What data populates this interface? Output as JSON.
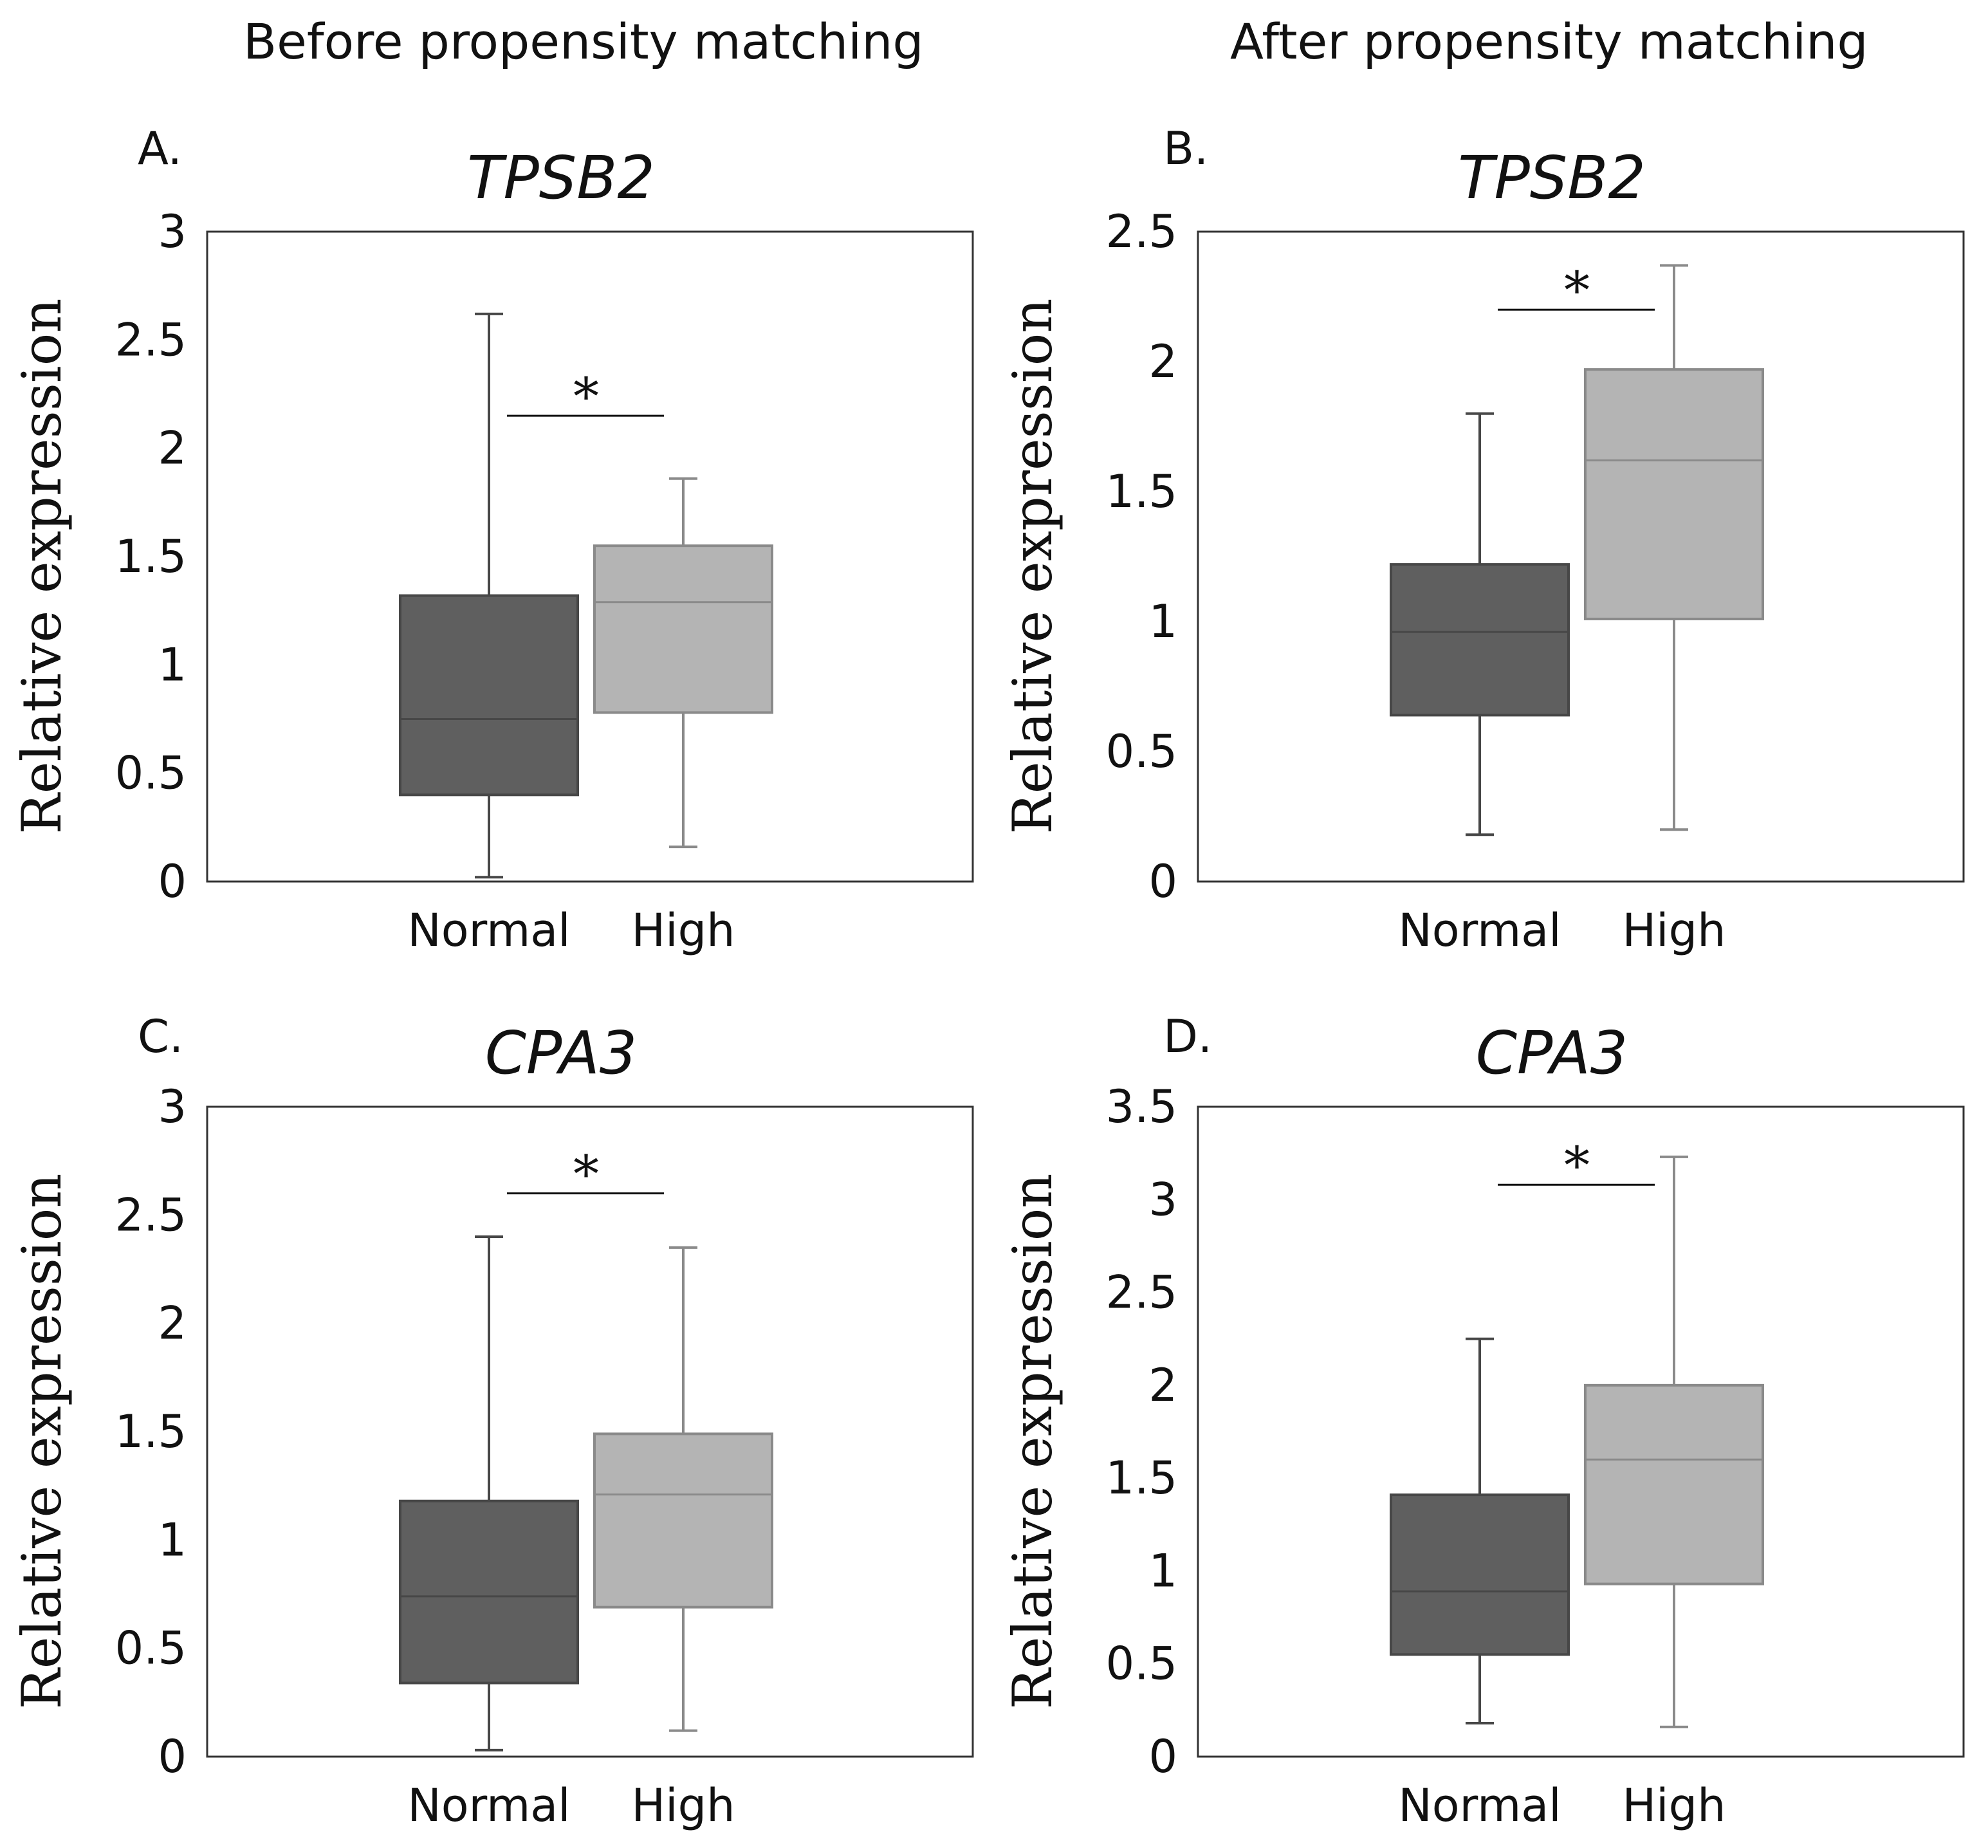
{
  "figure": {
    "columns": [
      {
        "heading": "Before propensity matching"
      },
      {
        "heading": "After propensity matching"
      }
    ]
  },
  "colors": {
    "normal_fill": "#5f5f5f",
    "normal_line": "#474747",
    "high_fill": "#b4b4b4",
    "high_line": "#8a8a8a",
    "frame": "#333333"
  },
  "chart_data": [
    {
      "panel": "A.",
      "type": "box",
      "title": "TPSB2",
      "ylabel": "Relative expression",
      "ylim": [
        0,
        3
      ],
      "yticks": [
        0,
        0.5,
        1,
        1.5,
        2,
        2.5,
        3
      ],
      "yticklabels": [
        "0",
        "0.5",
        "1",
        "1.5",
        "2",
        "2.5",
        "3"
      ],
      "categories": [
        "Normal",
        "High"
      ],
      "boxes": [
        {
          "category": "Normal",
          "min": 0.02,
          "q1": 0.4,
          "median": 0.75,
          "q3": 1.32,
          "max": 2.62
        },
        {
          "category": "High",
          "min": 0.16,
          "q1": 0.78,
          "median": 1.29,
          "q3": 1.55,
          "max": 1.86
        }
      ],
      "significance": {
        "label": "*",
        "y": 2.15
      }
    },
    {
      "panel": "B.",
      "type": "box",
      "title": "TPSB2",
      "ylabel": "Relative expression",
      "ylim": [
        0,
        2.5
      ],
      "yticks": [
        0,
        0.5,
        1,
        1.5,
        2,
        2.5
      ],
      "yticklabels": [
        "0",
        "0.5",
        "1",
        "1.5",
        "2",
        "2.5"
      ],
      "categories": [
        "Normal",
        "High"
      ],
      "boxes": [
        {
          "category": "Normal",
          "min": 0.18,
          "q1": 0.64,
          "median": 0.96,
          "q3": 1.22,
          "max": 1.8
        },
        {
          "category": "High",
          "min": 0.2,
          "q1": 1.01,
          "median": 1.62,
          "q3": 1.97,
          "max": 2.37
        }
      ],
      "significance": {
        "label": "*",
        "y": 2.2
      }
    },
    {
      "panel": "C.",
      "type": "box",
      "title": "CPA3",
      "ylabel": "Relative expression",
      "ylim": [
        0,
        3
      ],
      "yticks": [
        0,
        0.5,
        1,
        1.5,
        2,
        2.5,
        3
      ],
      "yticklabels": [
        "0",
        "0.5",
        "1",
        "1.5",
        "2",
        "2.5",
        "3"
      ],
      "categories": [
        "Normal",
        "High"
      ],
      "boxes": [
        {
          "category": "Normal",
          "min": 0.03,
          "q1": 0.34,
          "median": 0.74,
          "q3": 1.18,
          "max": 2.4
        },
        {
          "category": "High",
          "min": 0.12,
          "q1": 0.69,
          "median": 1.21,
          "q3": 1.49,
          "max": 2.35
        }
      ],
      "significance": {
        "label": "*",
        "y": 2.6
      }
    },
    {
      "panel": "D.",
      "type": "box",
      "title": "CPA3",
      "ylabel": "Relative expression",
      "ylim": [
        0,
        3.5
      ],
      "yticks": [
        0,
        0.5,
        1,
        1.5,
        2,
        2.5,
        3,
        3.5
      ],
      "yticklabels": [
        "0",
        "0.5",
        "1",
        "1.5",
        "2",
        "2.5",
        "3",
        "3.5"
      ],
      "categories": [
        "Normal",
        "High"
      ],
      "boxes": [
        {
          "category": "Normal",
          "min": 0.18,
          "q1": 0.55,
          "median": 0.89,
          "q3": 1.41,
          "max": 2.25
        },
        {
          "category": "High",
          "min": 0.16,
          "q1": 0.93,
          "median": 1.6,
          "q3": 2.0,
          "max": 3.23
        }
      ],
      "significance": {
        "label": "*",
        "y": 3.08
      }
    }
  ]
}
